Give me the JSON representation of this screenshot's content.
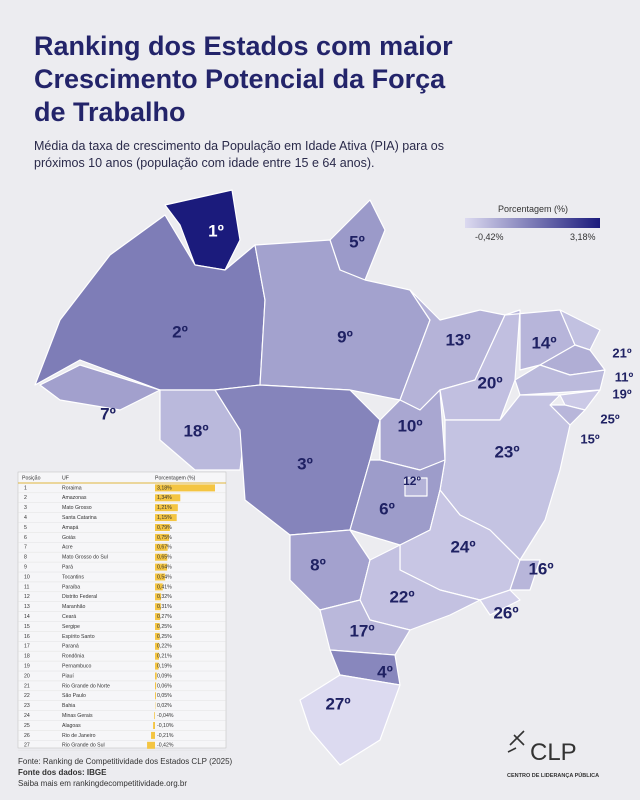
{
  "header": {
    "title_lines": [
      "Ranking dos Estados com maior",
      "Crescimento Potencial da Força",
      "de Trabalho"
    ],
    "subtitle_lines": [
      "Média da taxa de crescimento da População em Idade Ativa (PIA) para os",
      "próximos 10 anos (população com idade entre 15 e 64 anos)."
    ]
  },
  "legend": {
    "title": "Porcentagem (%)",
    "min": -0.42,
    "max": 3.18,
    "min_label": "-0,42%",
    "max_label": "3,18%",
    "low_color": "#dcdaf0",
    "high_color": "#1b1b7c"
  },
  "map": {
    "labels": [
      "1º",
      "2º",
      "3º",
      "4º",
      "5º",
      "6º",
      "7º",
      "8º",
      "9º",
      "10º",
      "11º",
      "12º",
      "13º",
      "14º",
      "15º",
      "16º",
      "17º",
      "18º",
      "19º",
      "20º",
      "21º",
      "22º",
      "23º",
      "24º",
      "25º",
      "26º",
      "27º"
    ]
  },
  "table": {
    "headers": [
      "Posição",
      "UF",
      "Porcentagem (%)"
    ],
    "rows": [
      {
        "position": "1",
        "uf": "Roraima",
        "percent": 3.18,
        "label": "3,18%"
      },
      {
        "position": "2",
        "uf": "Amazonas",
        "percent": 1.34,
        "label": "1,34%"
      },
      {
        "position": "3",
        "uf": "Mato Grosso",
        "percent": 1.21,
        "label": "1,21%"
      },
      {
        "position": "4",
        "uf": "Santa Catarina",
        "percent": 1.15,
        "label": "1,15%"
      },
      {
        "position": "5",
        "uf": "Amapá",
        "percent": 0.79,
        "label": "0,79%"
      },
      {
        "position": "6",
        "uf": "Goiás",
        "percent": 0.75,
        "label": "0,75%"
      },
      {
        "position": "7",
        "uf": "Acre",
        "percent": 0.67,
        "label": "0,67%"
      },
      {
        "position": "8",
        "uf": "Mato Grosso do Sul",
        "percent": 0.65,
        "label": "0,65%"
      },
      {
        "position": "9",
        "uf": "Pará",
        "percent": 0.64,
        "label": "0,64%"
      },
      {
        "position": "10",
        "uf": "Tocantins",
        "percent": 0.54,
        "label": "0,54%"
      },
      {
        "position": "11",
        "uf": "Paraíba",
        "percent": 0.41,
        "label": "0,41%"
      },
      {
        "position": "12",
        "uf": "Distrito Federal",
        "percent": 0.32,
        "label": "0,32%"
      },
      {
        "position": "13",
        "uf": "Maranhão",
        "percent": 0.31,
        "label": "0,31%"
      },
      {
        "position": "14",
        "uf": "Ceará",
        "percent": 0.27,
        "label": "0,27%"
      },
      {
        "position": "15",
        "uf": "Sergipe",
        "percent": 0.25,
        "label": "0,25%"
      },
      {
        "position": "16",
        "uf": "Espírito Santo",
        "percent": 0.25,
        "label": "0,25%"
      },
      {
        "position": "17",
        "uf": "Paraná",
        "percent": 0.22,
        "label": "0,22%"
      },
      {
        "position": "18",
        "uf": "Rondônia",
        "percent": 0.21,
        "label": "0,21%"
      },
      {
        "position": "19",
        "uf": "Pernambuco",
        "percent": 0.19,
        "label": "0,19%"
      },
      {
        "position": "20",
        "uf": "Piauí",
        "percent": 0.09,
        "label": "0,09%"
      },
      {
        "position": "21",
        "uf": "Rio Grande do Norte",
        "percent": 0.06,
        "label": "0,06%"
      },
      {
        "position": "22",
        "uf": "São Paulo",
        "percent": 0.05,
        "label": "0,05%"
      },
      {
        "position": "23",
        "uf": "Bahia",
        "percent": 0.02,
        "label": "0,02%"
      },
      {
        "position": "24",
        "uf": "Minas Gerais",
        "percent": -0.04,
        "label": "-0,04%"
      },
      {
        "position": "25",
        "uf": "Alagoas",
        "percent": -0.1,
        "label": "-0,10%"
      },
      {
        "position": "26",
        "uf": "Rio de Janeiro",
        "percent": -0.21,
        "label": "-0,21%"
      },
      {
        "position": "27",
        "uf": "Rio Grande do Sul",
        "percent": -0.42,
        "label": "-0,42%"
      }
    ]
  },
  "footer": {
    "lines": [
      "Fonte: Ranking de Competitividade dos Estados CLP (2025)",
      "Fonte dos dados: IBGE",
      "Saiba mais em rankingdecompetitividade.org.br"
    ],
    "logo": "CLP",
    "logo_subtitle": "CENTRO DE LIDERANÇA PÚBLICA"
  }
}
